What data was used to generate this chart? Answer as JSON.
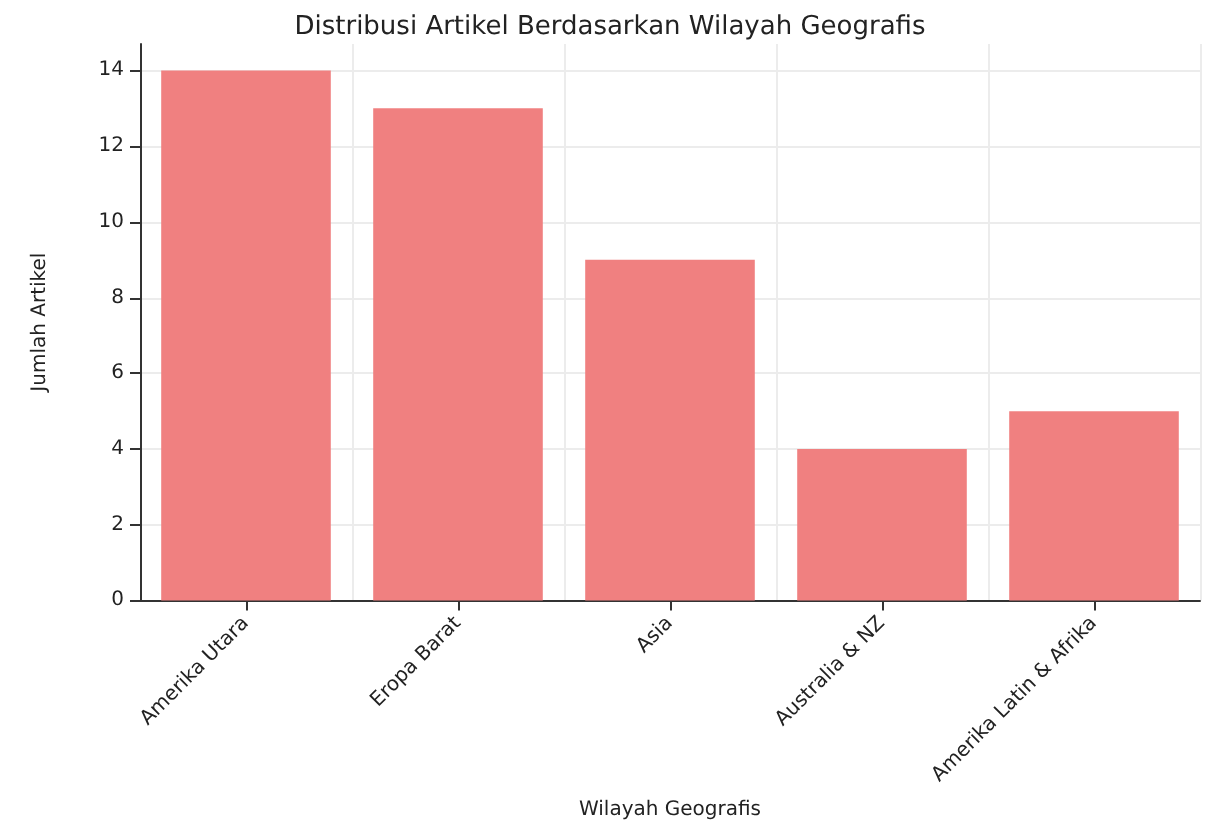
{
  "chart_data": {
    "type": "bar",
    "title": "Distribusi Artikel Berdasarkan Wilayah Geografis",
    "xlabel": "Wilayah Geografis",
    "ylabel": "Jumlah Artikel",
    "categories": [
      "Amerika Utara",
      "Eropa Barat",
      "Asia",
      "Australia & NZ",
      "Amerika Latin & Afrika"
    ],
    "values": [
      14,
      13,
      9,
      4,
      5
    ],
    "color": "#f08080",
    "ylim": [
      0,
      14.7
    ],
    "yticks": [
      0,
      2,
      4,
      6,
      8,
      10,
      12,
      14
    ],
    "grid": true
  }
}
